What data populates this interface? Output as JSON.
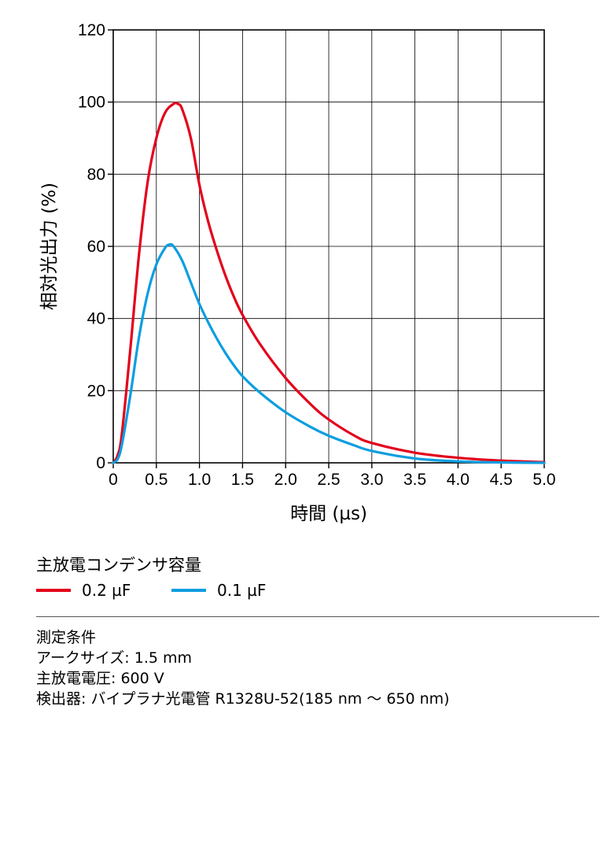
{
  "chart_data": {
    "type": "line",
    "xlabel": "時間 (µs)",
    "ylabel": "相対光出力 (%)",
    "xlim": [
      0,
      5.0
    ],
    "ylim": [
      0,
      120
    ],
    "xticks": [
      "0",
      "0.5",
      "1.0",
      "1.5",
      "2.0",
      "2.5",
      "3.0",
      "3.5",
      "4.0",
      "4.5",
      "5.0"
    ],
    "yticks": [
      "0",
      "20",
      "40",
      "60",
      "80",
      "100",
      "120"
    ],
    "grid": true,
    "series": [
      {
        "name": "0.2 µF",
        "color": "#e3001b",
        "x": [
          0,
          0.05,
          0.1,
          0.2,
          0.3,
          0.4,
          0.5,
          0.6,
          0.7,
          0.75,
          0.8,
          0.9,
          1.0,
          1.1,
          1.2,
          1.3,
          1.4,
          1.5,
          1.7,
          2.0,
          2.3,
          2.5,
          2.8,
          3.0,
          3.5,
          4.0,
          4.5,
          5.0
        ],
        "y": [
          0,
          2,
          8,
          32,
          58,
          78,
          90,
          97,
          99.5,
          99.5,
          98,
          90,
          77,
          67,
          59,
          52,
          46,
          41,
          33,
          23.5,
          16,
          12,
          7.5,
          5.5,
          2.8,
          1.4,
          0.6,
          0.2
        ]
      },
      {
        "name": "0.1 µF",
        "color": "#0c9ee0",
        "x": [
          0,
          0.05,
          0.1,
          0.2,
          0.3,
          0.4,
          0.5,
          0.6,
          0.65,
          0.7,
          0.8,
          0.9,
          1.0,
          1.1,
          1.2,
          1.3,
          1.4,
          1.5,
          1.7,
          2.0,
          2.3,
          2.5,
          2.8,
          3.0,
          3.5,
          4.0,
          4.5,
          5.0
        ],
        "y": [
          0,
          1,
          5,
          19,
          35,
          47,
          55,
          59.5,
          60.5,
          60,
          56,
          50,
          44,
          39,
          34.5,
          30.5,
          27,
          24,
          19.5,
          14,
          9.8,
          7.5,
          4.8,
          3.3,
          1.2,
          0.4,
          0.1,
          0
        ]
      }
    ]
  },
  "legend": {
    "title": "主放電コンデンサ容量",
    "items": [
      "0.2 µF",
      "0.1 µF"
    ],
    "colors": [
      "#e3001b",
      "#0c9ee0"
    ]
  },
  "conditions": {
    "heading": "測定条件",
    "arc_size": "アークサイズ: 1.5 mm",
    "voltage": "主放電電圧: 600 V",
    "detector": "検出器: バイプラナ光電管 R1328U-52(185 nm 〜 650 nm)"
  }
}
